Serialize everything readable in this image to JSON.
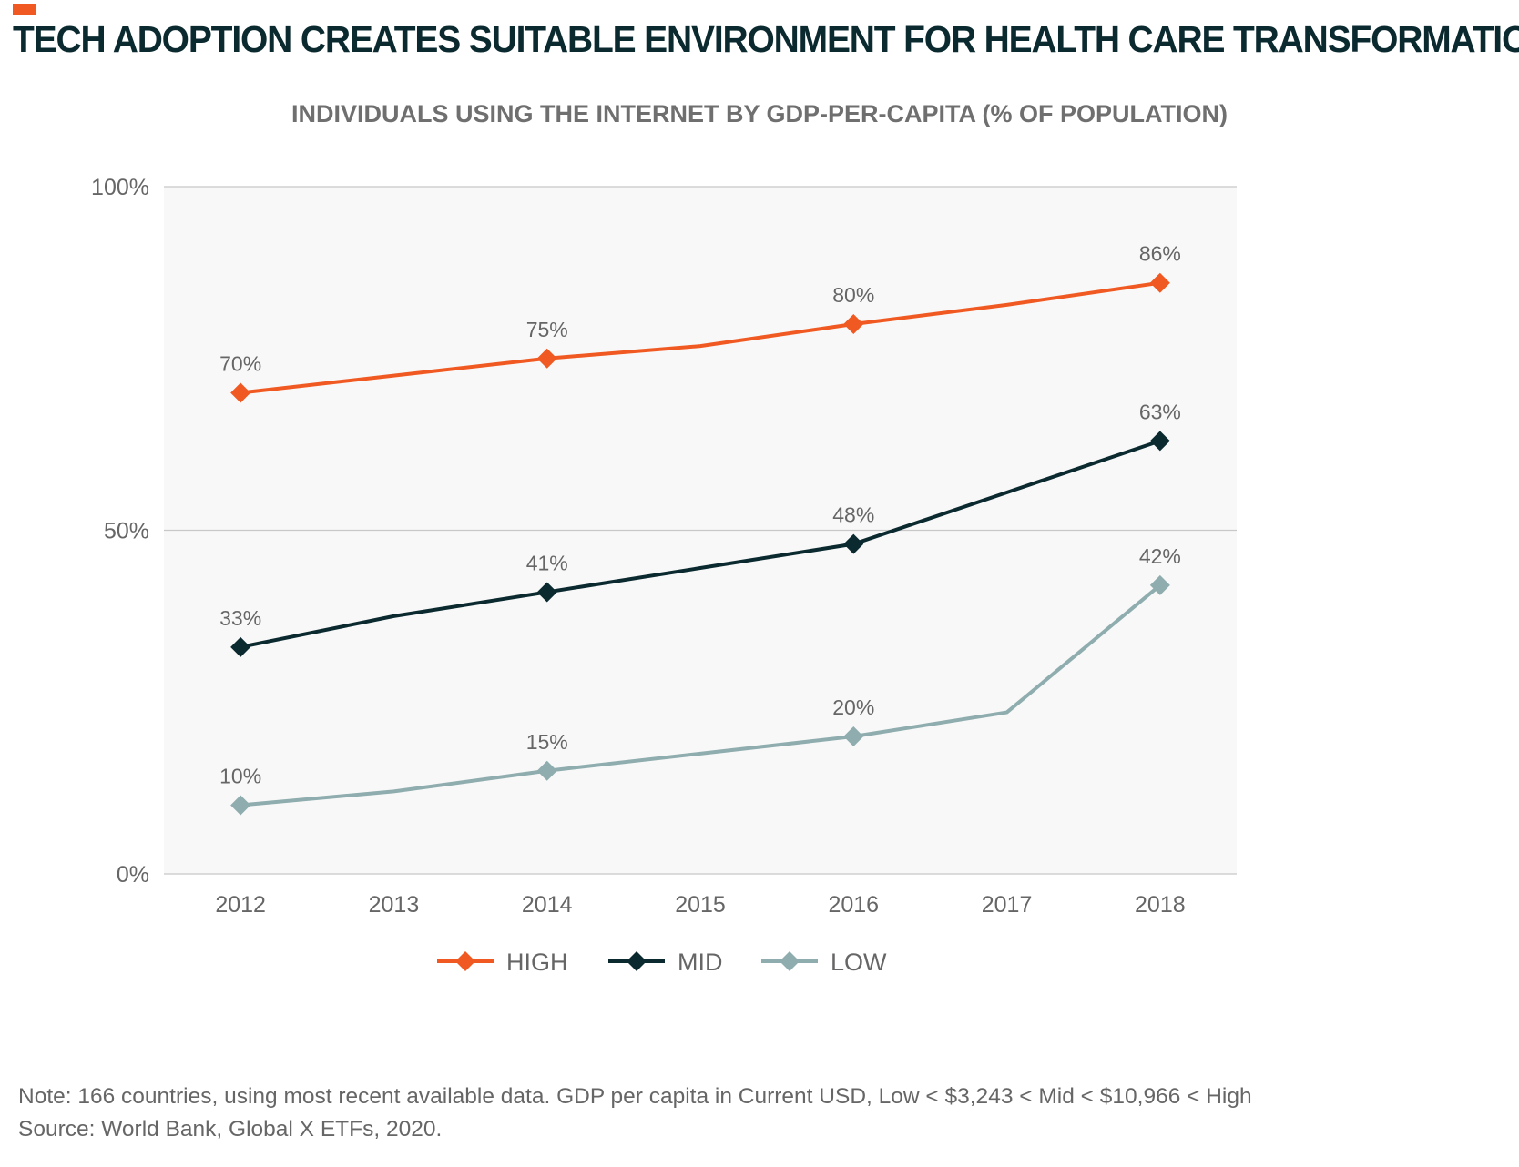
{
  "header": {
    "title": "TECH ADOPTION CREATES SUITABLE ENVIRONMENT FOR HEALTH CARE TRANSFORMATION"
  },
  "colors": {
    "accent": "#f05a22",
    "title": "#0b2a30",
    "subtitle": "#6f6f6f",
    "text": "#666666",
    "plot_background": "#f8f8f8",
    "grid": "#c8c8c8"
  },
  "chart_data": {
    "type": "line",
    "title": "INDIVIDUALS USING THE INTERNET BY GDP-PER-CAPITA (% OF POPULATION)",
    "xlabel": "",
    "ylabel": "",
    "x": [
      "2012",
      "2013",
      "2014",
      "2015",
      "2016",
      "2017",
      "2018"
    ],
    "ylim": [
      0,
      100
    ],
    "yticks": [
      {
        "value": 0,
        "label": "0%"
      },
      {
        "value": 50,
        "label": "50%"
      },
      {
        "value": 100,
        "label": "100%"
      }
    ],
    "grid": true,
    "legend_position": "bottom-center",
    "series": [
      {
        "name": "HIGH",
        "color": "#f05a22",
        "values": [
          70,
          72.5,
          75,
          76.8,
          80,
          82.8,
          86
        ],
        "marker": "diamond",
        "point_labels": [
          {
            "index": 0,
            "label": "70%"
          },
          {
            "index": 2,
            "label": "75%"
          },
          {
            "index": 4,
            "label": "80%"
          },
          {
            "index": 6,
            "label": "86%"
          }
        ]
      },
      {
        "name": "MID",
        "color": "#0b2a30",
        "values": [
          33,
          37.5,
          41,
          44.5,
          48,
          55.5,
          63
        ],
        "marker": "diamond",
        "point_labels": [
          {
            "index": 0,
            "label": "33%"
          },
          {
            "index": 2,
            "label": "41%"
          },
          {
            "index": 4,
            "label": "48%"
          },
          {
            "index": 6,
            "label": "63%"
          }
        ]
      },
      {
        "name": "LOW",
        "color": "#8fadae",
        "values": [
          10,
          12,
          15,
          17.5,
          20,
          23.5,
          42
        ],
        "marker": "diamond",
        "point_labels": [
          {
            "index": 0,
            "label": "10%"
          },
          {
            "index": 2,
            "label": "15%"
          },
          {
            "index": 4,
            "label": "20%"
          },
          {
            "index": 6,
            "label": "42%"
          }
        ]
      }
    ]
  },
  "footer": {
    "note": "Note: 166 countries, using most recent available data. GDP per capita in Current USD, Low < $3,243 < Mid < $10,966 < High",
    "source": "Source: World Bank, Global X ETFs, 2020."
  }
}
